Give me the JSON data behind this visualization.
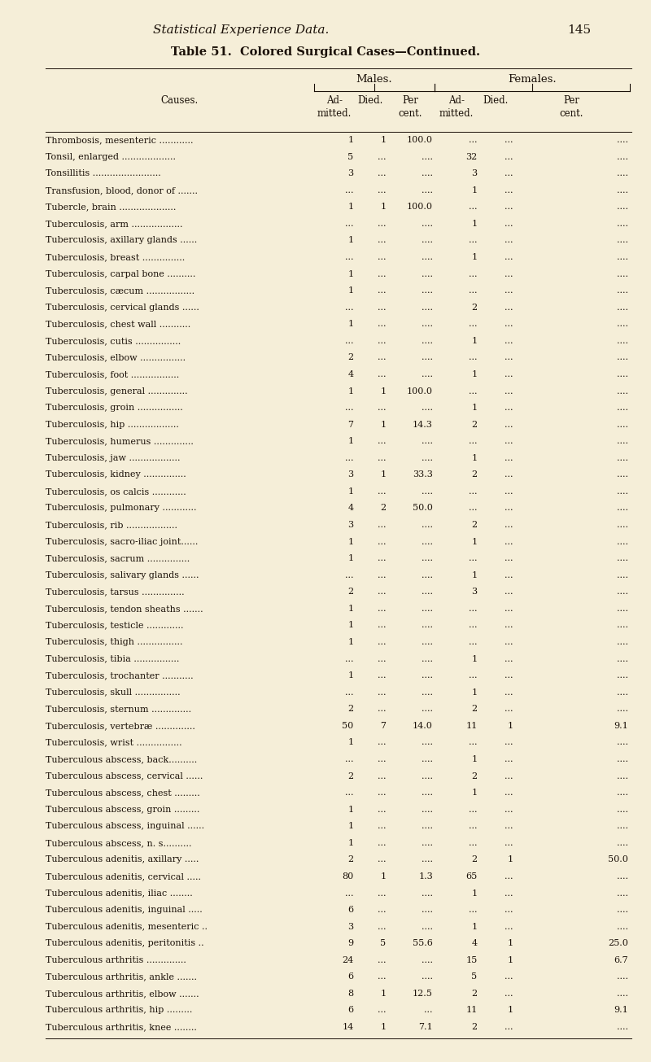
{
  "page_header_italic": "Statistical Experience Data.",
  "page_number": "145",
  "table_title": "Table 51.  Colored Surgical Cases—Continued.",
  "bg_color": "#f5eed8",
  "text_color": "#1a1008",
  "rows": [
    [
      "Thrombosis, mesenteric ............",
      "1",
      "1",
      "100.0",
      "...",
      "...",
      "...."
    ],
    [
      "Tonsil, enlarged ...................",
      "5",
      "...",
      "....",
      "32",
      "...",
      "...."
    ],
    [
      "Tonsillitis ........................",
      "3",
      "...",
      "....",
      "3",
      "...",
      "...."
    ],
    [
      "Transfusion, blood, donor of .......",
      "...",
      "...",
      "....",
      "1",
      "...",
      "...."
    ],
    [
      "Tubercle, brain ....................",
      "1",
      "1",
      "100.0",
      "...",
      "...",
      "...."
    ],
    [
      "Tuberculosis, arm ..................",
      "...",
      "...",
      "....",
      "1",
      "...",
      "...."
    ],
    [
      "Tuberculosis, axillary glands ......",
      "1",
      "...",
      "....",
      "...",
      "...",
      "...."
    ],
    [
      "Tuberculosis, breast ...............",
      "...",
      "...",
      "....",
      "1",
      "...",
      "...."
    ],
    [
      "Tuberculosis, carpal bone ..........",
      "1",
      "...",
      "....",
      "...",
      "...",
      "...."
    ],
    [
      "Tuberculosis, cæcum .................",
      "1",
      "...",
      "....",
      "...",
      "...",
      "...."
    ],
    [
      "Tuberculosis, cervical glands ......",
      "...",
      "...",
      "....",
      "2",
      "...",
      "...."
    ],
    [
      "Tuberculosis, chest wall ...........",
      "1",
      "...",
      "....",
      "...",
      "...",
      "...."
    ],
    [
      "Tuberculosis, cutis ................",
      "...",
      "...",
      "....",
      "1",
      "...",
      "...."
    ],
    [
      "Tuberculosis, elbow ................",
      "2",
      "...",
      "....",
      "...",
      "...",
      "...."
    ],
    [
      "Tuberculosis, foot .................",
      "4",
      "...",
      "....",
      "1",
      "...",
      "...."
    ],
    [
      "Tuberculosis, general ..............",
      "1",
      "1",
      "100.0",
      "...",
      "...",
      "...."
    ],
    [
      "Tuberculosis, groin ................",
      "...",
      "...",
      "....",
      "1",
      "...",
      "...."
    ],
    [
      "Tuberculosis, hip ..................",
      "7",
      "1",
      "14.3",
      "2",
      "...",
      "...."
    ],
    [
      "Tuberculosis, humerus ..............",
      "1",
      "...",
      "....",
      "...",
      "...",
      "...."
    ],
    [
      "Tuberculosis, jaw ..................",
      "...",
      "...",
      "....",
      "1",
      "...",
      "...."
    ],
    [
      "Tuberculosis, kidney ...............",
      "3",
      "1",
      "33.3",
      "2",
      "...",
      "...."
    ],
    [
      "Tuberculosis, os calcis ............",
      "1",
      "...",
      "....",
      "...",
      "...",
      "...."
    ],
    [
      "Tuberculosis, pulmonary ............",
      "4",
      "2",
      "50.0",
      "...",
      "...",
      "...."
    ],
    [
      "Tuberculosis, rib ..................",
      "3",
      "...",
      "....",
      "2",
      "...",
      "...."
    ],
    [
      "Tuberculosis, sacro-iliac joint......",
      "1",
      "...",
      "....",
      "1",
      "...",
      "...."
    ],
    [
      "Tuberculosis, sacrum ...............",
      "1",
      "...",
      "....",
      "...",
      "...",
      "...."
    ],
    [
      "Tuberculosis, salivary glands ......",
      "...",
      "...",
      "....",
      "1",
      "...",
      "...."
    ],
    [
      "Tuberculosis, tarsus ...............",
      "2",
      "...",
      "....",
      "3",
      "...",
      "...."
    ],
    [
      "Tuberculosis, tendon sheaths .......",
      "1",
      "...",
      "....",
      "...",
      "...",
      "...."
    ],
    [
      "Tuberculosis, testicle .............",
      "1",
      "...",
      "....",
      "...",
      "...",
      "...."
    ],
    [
      "Tuberculosis, thigh ................",
      "1",
      "...",
      "....",
      "...",
      "...",
      "...."
    ],
    [
      "Tuberculosis, tibia ................",
      "...",
      "...",
      "....",
      "1",
      "...",
      "...."
    ],
    [
      "Tuberculosis, trochanter ...........",
      "1",
      "...",
      "....",
      "...",
      "...",
      "...."
    ],
    [
      "Tuberculosis, skull ................",
      "...",
      "...",
      "....",
      "1",
      "...",
      "...."
    ],
    [
      "Tuberculosis, sternum ..............",
      "2",
      "...",
      "....",
      "2",
      "...",
      "...."
    ],
    [
      "Tuberculosis, vertebræ ..............",
      "50",
      "7",
      "14.0",
      "11",
      "1",
      "9.1"
    ],
    [
      "Tuberculosis, wrist ................",
      "1",
      "...",
      "....",
      "...",
      "...",
      "...."
    ],
    [
      "Tuberculous abscess, back..........",
      "...",
      "...",
      "....",
      "1",
      "...",
      "...."
    ],
    [
      "Tuberculous abscess, cervical ......",
      "2",
      "...",
      "....",
      "2",
      "...",
      "...."
    ],
    [
      "Tuberculous abscess, chest .........",
      "...",
      "...",
      "....",
      "1",
      "...",
      "...."
    ],
    [
      "Tuberculous abscess, groin .........",
      "1",
      "...",
      "....",
      "...",
      "...",
      "...."
    ],
    [
      "Tuberculous abscess, inguinal ......",
      "1",
      "...",
      "....",
      "...",
      "...",
      "...."
    ],
    [
      "Tuberculous abscess, n. s..........",
      "1",
      "...",
      "....",
      "...",
      "...",
      "...."
    ],
    [
      "Tuberculous adenitis, axillary .....",
      "2",
      "...",
      "....",
      "2",
      "1",
      "50.0"
    ],
    [
      "Tuberculous adenitis, cervical .....",
      "80",
      "1",
      "1.3",
      "65",
      "...",
      "...."
    ],
    [
      "Tuberculous adenitis, iliac ........",
      "...",
      "...",
      "....",
      "1",
      "...",
      "...."
    ],
    [
      "Tuberculous adenitis, inguinal .....",
      "6",
      "...",
      "....",
      "...",
      "...",
      "...."
    ],
    [
      "Tuberculous adenitis, mesenteric ..",
      "3",
      "...",
      "....",
      "1",
      "...",
      "...."
    ],
    [
      "Tuberculous adenitis, peritonitis ..",
      "9",
      "5",
      "55.6",
      "4",
      "1",
      "25.0"
    ],
    [
      "Tuberculous arthritis ..............",
      "24",
      "...",
      "....",
      "15",
      "1",
      "6.7"
    ],
    [
      "Tuberculous arthritis, ankle .......",
      "6",
      "...",
      "....",
      "5",
      "...",
      "...."
    ],
    [
      "Tuberculous arthritis, elbow .......",
      "8",
      "1",
      "12.5",
      "2",
      "...",
      "...."
    ],
    [
      "Tuberculous arthritis, hip .........",
      "6",
      "...",
      "...",
      "11",
      "1",
      "9.1"
    ],
    [
      "Tuberculous arthritis, knee ........",
      "14",
      "1",
      "7.1",
      "2",
      "...",
      "...."
    ]
  ]
}
